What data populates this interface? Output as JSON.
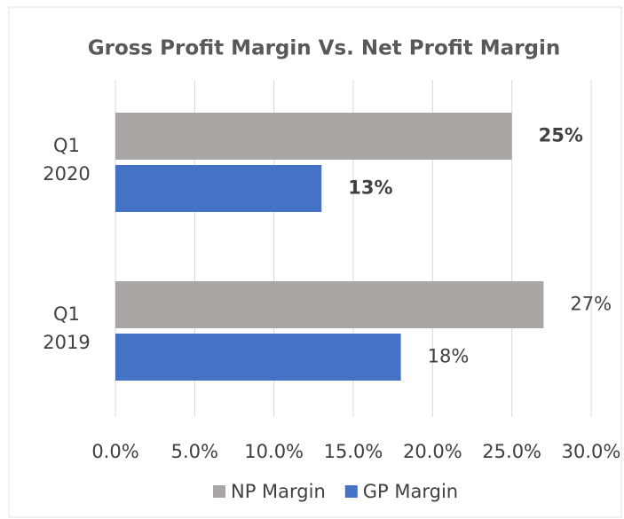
{
  "chart_data": {
    "type": "barh",
    "title": "Gross Profit Margin Vs. Net Profit Margin",
    "categories": [
      "Q1 2020",
      "Q1 2019"
    ],
    "series": [
      {
        "name": "NP Margin",
        "color": "#a9a6a4",
        "values": [
          25,
          27
        ],
        "value_labels": [
          "25%",
          "27%"
        ]
      },
      {
        "name": "GP Margin",
        "color": "#4472c4",
        "values": [
          13,
          18
        ],
        "value_labels": [
          "13%",
          "18%"
        ]
      }
    ],
    "xlim": [
      0,
      30
    ],
    "xticks": [
      {
        "value": 0,
        "label": "0.0%"
      },
      {
        "value": 5,
        "label": "5.0%"
      },
      {
        "value": 10,
        "label": "10.0%"
      },
      {
        "value": 15,
        "label": "15.0%"
      },
      {
        "value": 20,
        "label": "20.0%"
      },
      {
        "value": 25,
        "label": "25.0%"
      },
      {
        "value": 30,
        "label": "30.0%"
      }
    ],
    "grid": true,
    "legend": "bottom"
  }
}
